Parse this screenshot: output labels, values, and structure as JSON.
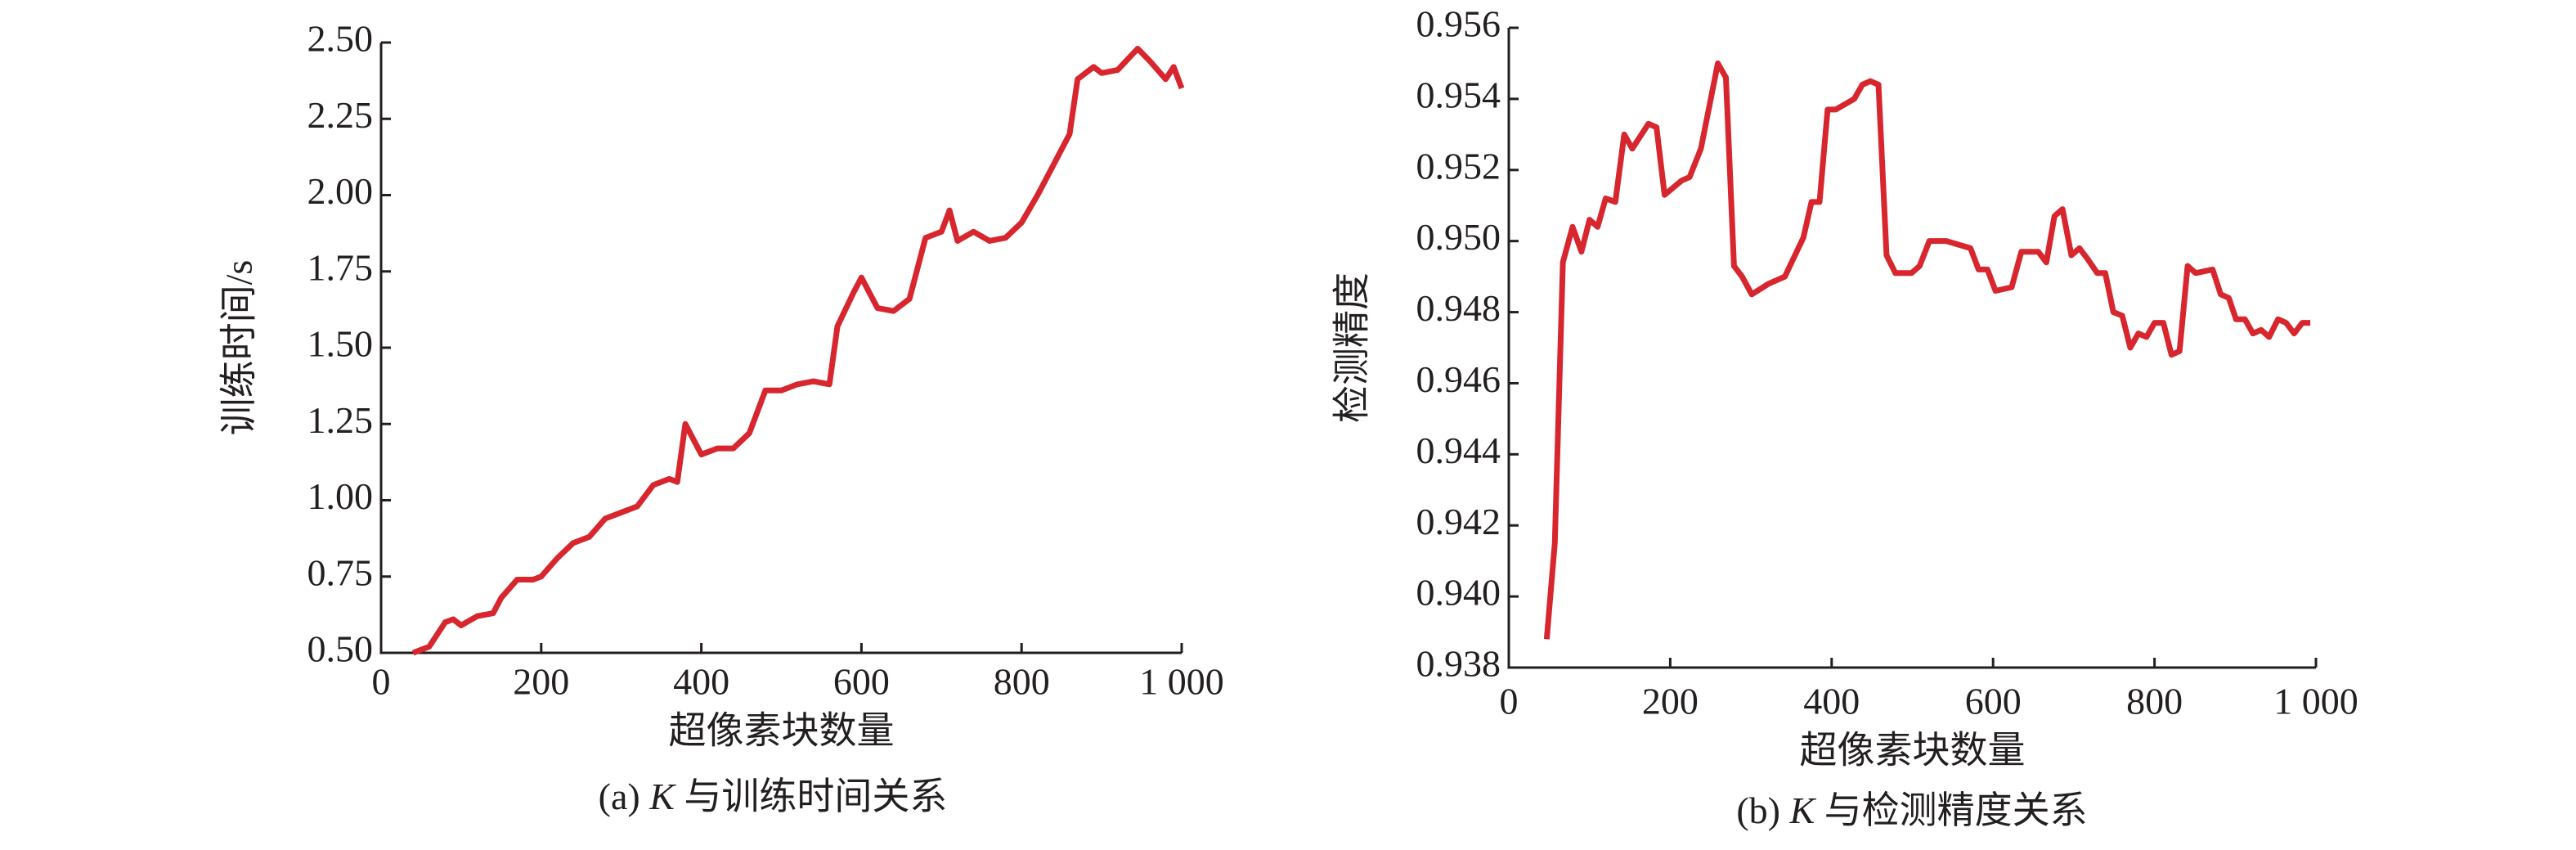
{
  "chart_data": [
    {
      "type": "line",
      "y_label": "训练时间/s",
      "x_label": "超像素块数量",
      "caption": [
        "(a) ",
        "K",
        " 与训练时间关系"
      ],
      "color": "#d7262e",
      "xlim": [
        0,
        1000
      ],
      "xticks": [
        0,
        200,
        400,
        600,
        800,
        {
          "value": 1000,
          "label": "1 000"
        }
      ],
      "ylim": [
        0.5,
        2.5
      ],
      "yticks": [
        {
          "value": 0.5,
          "label": "0.50"
        },
        0.75,
        {
          "value": 1,
          "label": "1.00"
        },
        1.25,
        {
          "value": 1.5,
          "label": "1.50"
        },
        1.75,
        {
          "value": 2,
          "label": "2.00"
        },
        2.25,
        {
          "value": 2.5,
          "label": "2.50"
        }
      ],
      "x": [
        40,
        60,
        80,
        90,
        100,
        120,
        140,
        150,
        170,
        190,
        200,
        220,
        240,
        260,
        280,
        300,
        320,
        340,
        360,
        370,
        380,
        400,
        420,
        440,
        460,
        480,
        500,
        520,
        540,
        560,
        570,
        590,
        600,
        620,
        640,
        660,
        680,
        700,
        710,
        720,
        740,
        760,
        780,
        800,
        820,
        840,
        860,
        870,
        890,
        900,
        920,
        945,
        960,
        980,
        990,
        1000
      ],
      "values": [
        0.5,
        0.52,
        0.6,
        0.61,
        0.59,
        0.62,
        0.63,
        0.68,
        0.74,
        0.74,
        0.75,
        0.81,
        0.86,
        0.88,
        0.94,
        0.96,
        0.98,
        1.05,
        1.07,
        1.06,
        1.25,
        1.15,
        1.17,
        1.17,
        1.22,
        1.36,
        1.36,
        1.38,
        1.39,
        1.38,
        1.57,
        1.68,
        1.73,
        1.63,
        1.62,
        1.66,
        1.86,
        1.88,
        1.95,
        1.85,
        1.88,
        1.85,
        1.86,
        1.91,
        2.0,
        2.1,
        2.2,
        2.38,
        2.42,
        2.4,
        2.41,
        2.48,
        2.44,
        2.38,
        2.42,
        2.35
      ]
    },
    {
      "type": "line",
      "y_label": "检测精度",
      "x_label": "超像素块数量",
      "caption": [
        "(b) ",
        "K",
        " 与检测精度关系"
      ],
      "color": "#d7262e",
      "xlim": [
        0,
        1000
      ],
      "xticks": [
        0,
        200,
        400,
        600,
        800,
        {
          "value": 1000,
          "label": "1 000"
        }
      ],
      "ylim": [
        0.938,
        0.956
      ],
      "yticks": [
        0.938,
        {
          "value": 0.94,
          "label": "0.940"
        },
        0.942,
        0.944,
        0.946,
        0.948,
        {
          "value": 0.95,
          "label": "0.950"
        },
        0.952,
        0.954,
        0.956
      ],
      "x": [
        47,
        57,
        67,
        79,
        90,
        100,
        110,
        120,
        132,
        143,
        153,
        173,
        183,
        193,
        214,
        224,
        238,
        259,
        269,
        279,
        289,
        301,
        322,
        342,
        365,
        375,
        385,
        395,
        405,
        428,
        438,
        448,
        458,
        468,
        479,
        499,
        509,
        521,
        542,
        572,
        582,
        593,
        603,
        623,
        635,
        656,
        666,
        676,
        686,
        697,
        707,
        717,
        729,
        739,
        749,
        760,
        770,
        780,
        790,
        800,
        811,
        821,
        831,
        841,
        851,
        872,
        882,
        892,
        901,
        912,
        922,
        932,
        942,
        953,
        963,
        973,
        983,
        993
      ],
      "values": [
        0.9388,
        0.9415,
        0.9494,
        0.9504,
        0.9497,
        0.9506,
        0.9504,
        0.9512,
        0.9511,
        0.953,
        0.9526,
        0.9533,
        0.9532,
        0.9513,
        0.9517,
        0.9518,
        0.9526,
        0.955,
        0.9546,
        0.9493,
        0.949,
        0.9485,
        0.9488,
        0.949,
        0.9501,
        0.9511,
        0.9511,
        0.9537,
        0.9537,
        0.954,
        0.9544,
        0.9545,
        0.9544,
        0.9496,
        0.9491,
        0.9491,
        0.9493,
        0.95,
        0.95,
        0.9498,
        0.9492,
        0.9492,
        0.9486,
        0.9487,
        0.9497,
        0.9497,
        0.9494,
        0.9507,
        0.9509,
        0.9496,
        0.9498,
        0.9495,
        0.9491,
        0.9491,
        0.948,
        0.9479,
        0.947,
        0.9474,
        0.9473,
        0.9477,
        0.9477,
        0.9468,
        0.9469,
        0.9493,
        0.9491,
        0.9492,
        0.9485,
        0.9484,
        0.9478,
        0.9478,
        0.9474,
        0.9475,
        0.9473,
        0.9478,
        0.9477,
        0.9474,
        0.9477,
        0.9477
      ]
    }
  ]
}
